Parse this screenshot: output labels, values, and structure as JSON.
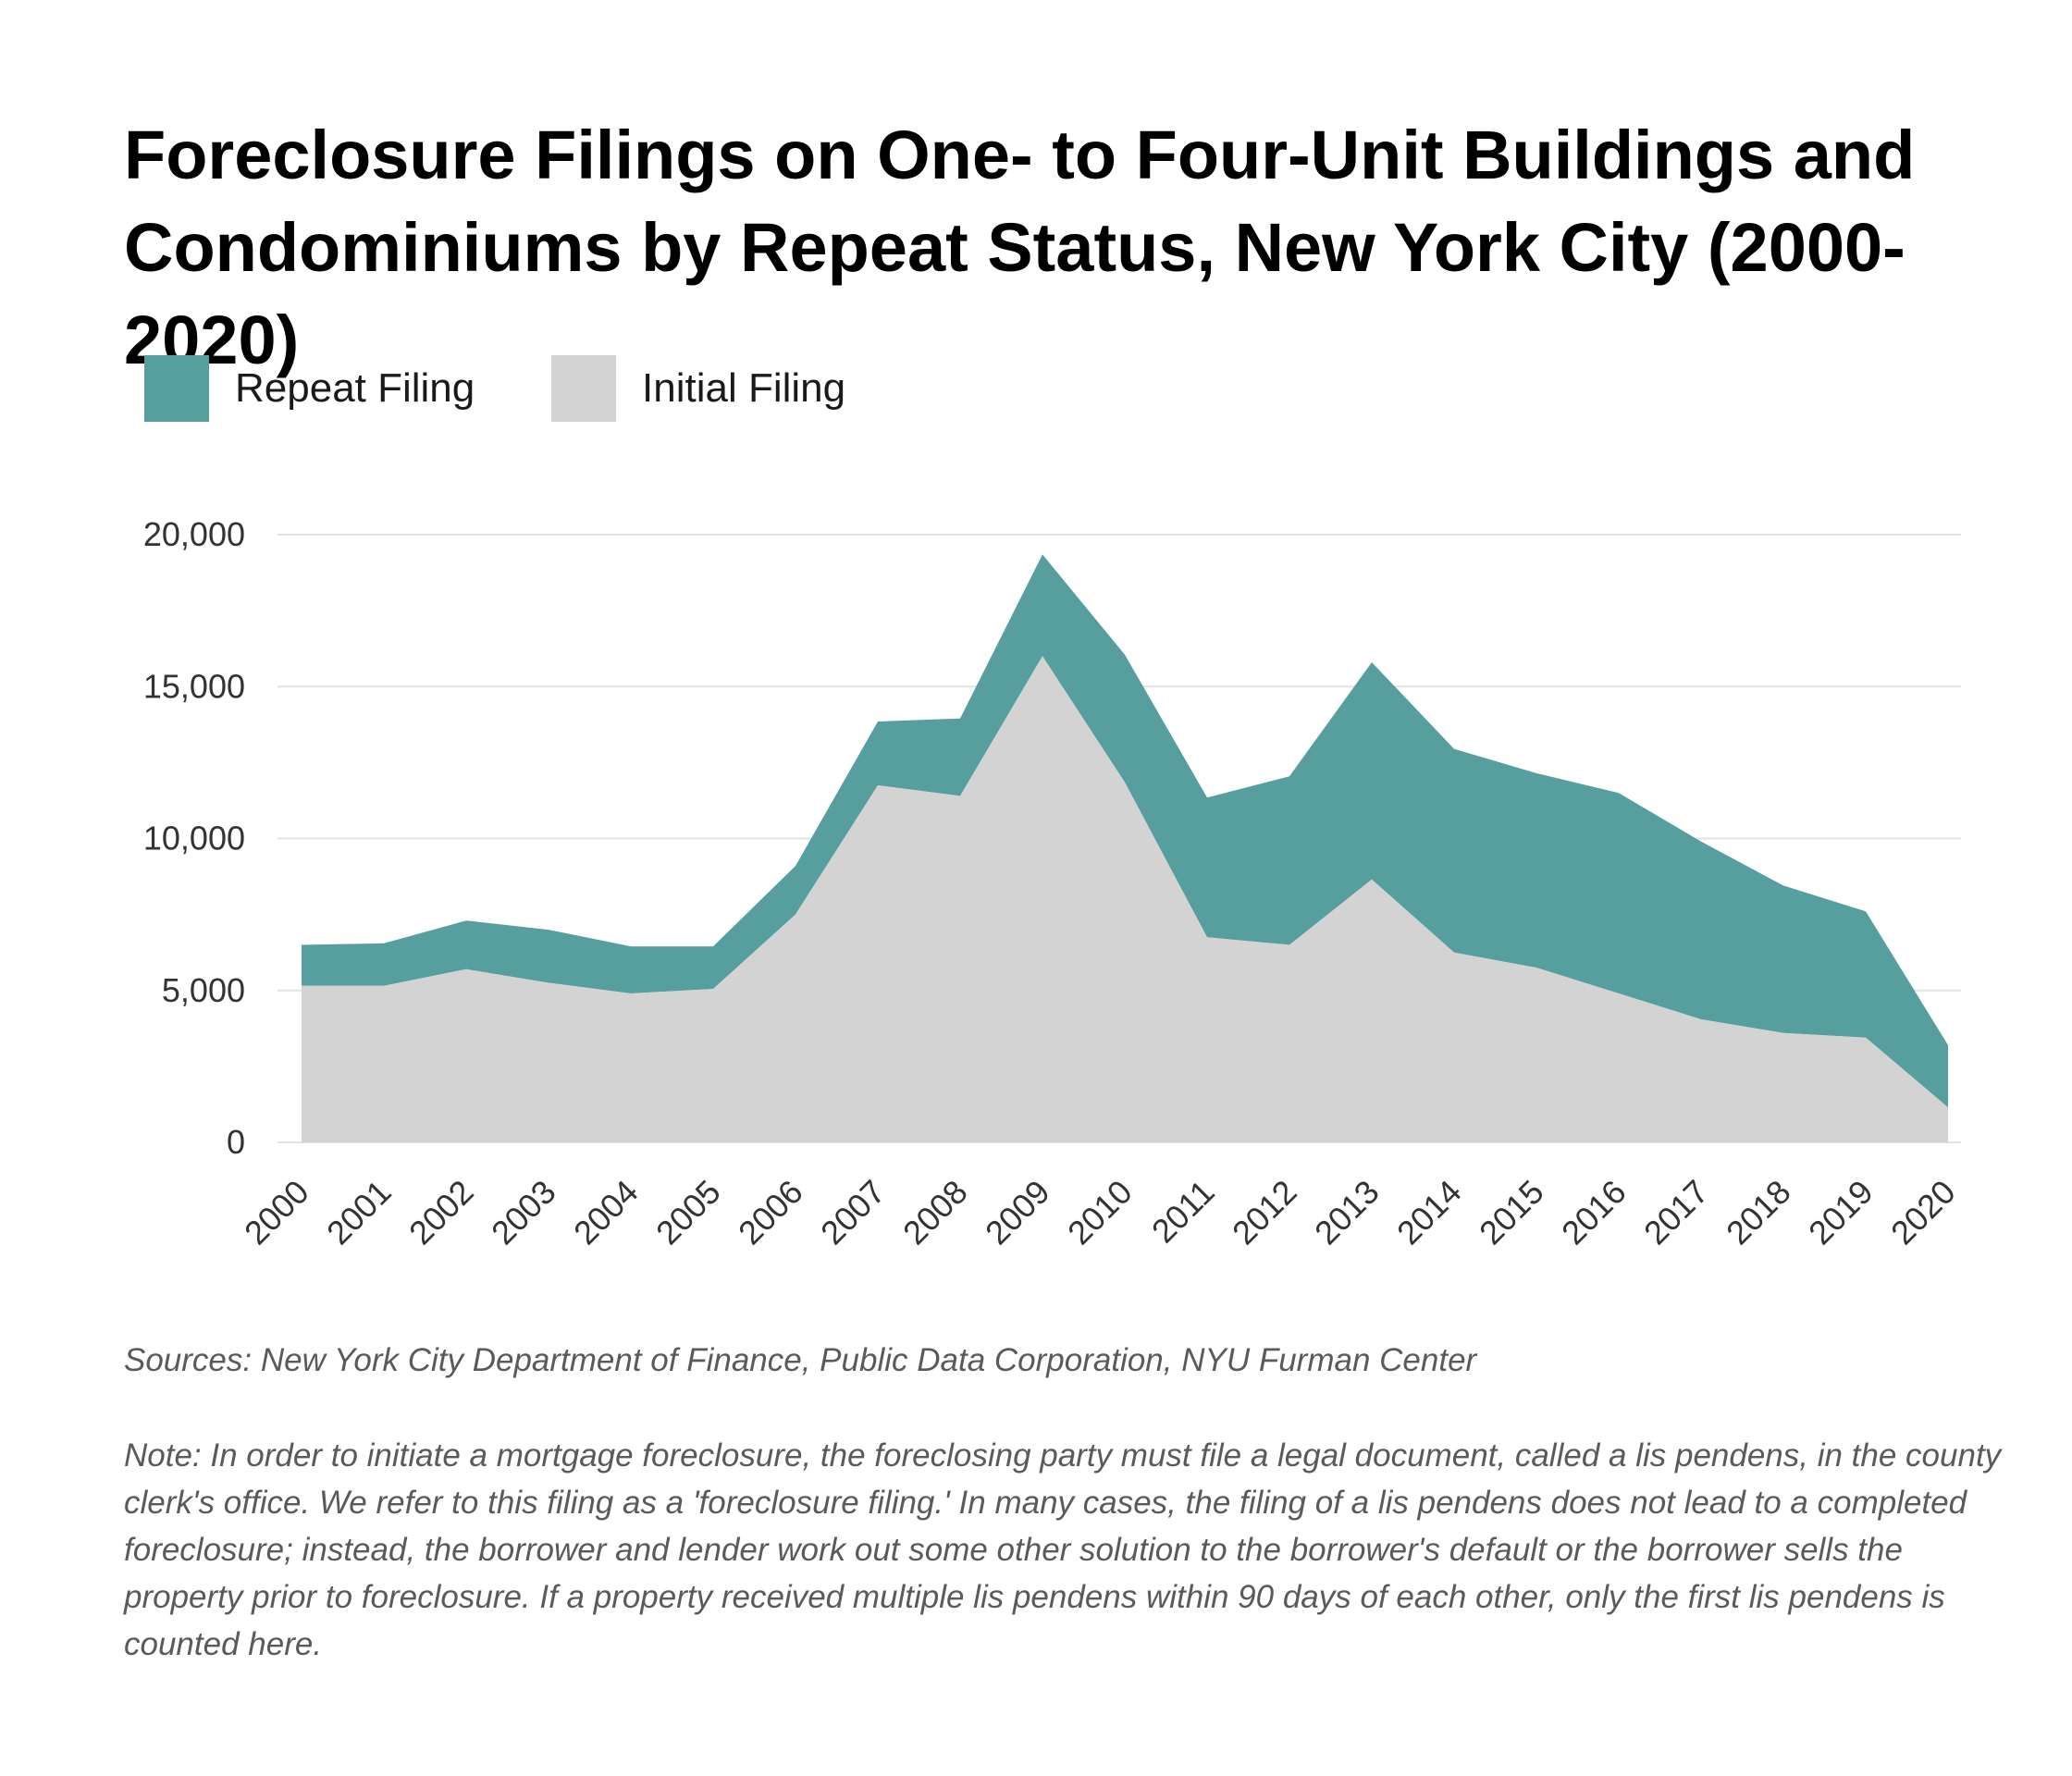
{
  "title": "Foreclosure Filings on One- to Four-Unit Buildings and Condominiums by Repeat Status, New York City (2000-2020)",
  "legend": [
    {
      "label": "Repeat Filing",
      "color": "#579e9f"
    },
    {
      "label": "Initial Filing",
      "color": "#d3d3d3"
    }
  ],
  "sources": "Sources: New York City Department of Finance, Public Data Corporation, NYU Furman Center",
  "note": "Note: In order to initiate a mortgage foreclosure, the foreclosing party must file a legal document, called a lis pendens, in the county clerk's office. We refer to this filing as a 'foreclosure filing.' In many cases, the filing of a lis pendens does not lead to a completed foreclosure; instead, the borrower and lender work out some other solution to the borrower's default or the borrower sells the property prior to foreclosure. If a property received multiple lis pendens within 90 days of each other, only the first lis pendens is counted here.",
  "chart_data": {
    "type": "area",
    "stacked": true,
    "title": "Foreclosure Filings on One- to Four-Unit Buildings and Condominiums by Repeat Status, New York City (2000-2020)",
    "xlabel": "",
    "ylabel": "",
    "x": [
      "2000",
      "2001",
      "2002",
      "2003",
      "2004",
      "2005",
      "2006",
      "2007",
      "2008",
      "2009",
      "2010",
      "2011",
      "2012",
      "2013",
      "2014",
      "2015",
      "2016",
      "2017",
      "2018",
      "2019",
      "2020"
    ],
    "series": [
      {
        "name": "Initial Filing",
        "color": "#d3d3d3",
        "values": [
          5150,
          5150,
          5700,
          5250,
          4900,
          5050,
          7500,
          11750,
          11400,
          16000,
          11850,
          6750,
          6500,
          8650,
          6250,
          5750,
          4900,
          4050,
          3600,
          3450,
          1150
        ]
      },
      {
        "name": "Repeat Filing",
        "color": "#579e9f",
        "values": [
          1350,
          1400,
          1600,
          1750,
          1550,
          1400,
          1600,
          2100,
          2550,
          3350,
          4200,
          4600,
          5550,
          7150,
          6700,
          6400,
          6600,
          5850,
          4850,
          4150,
          2050
        ]
      }
    ],
    "yticks": [
      0,
      5000,
      10000,
      15000,
      20000
    ],
    "ytick_labels": [
      "0",
      "5,000",
      "10,000",
      "15,000",
      "20,000"
    ],
    "ylim": [
      0,
      20000
    ],
    "grid": true,
    "legend_position": "top-left"
  }
}
